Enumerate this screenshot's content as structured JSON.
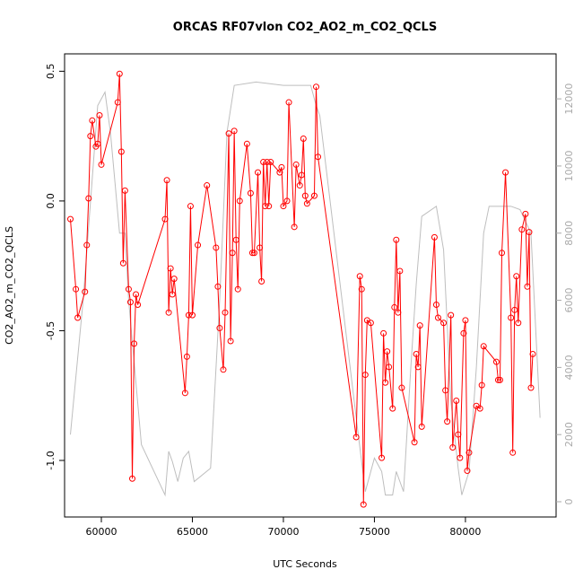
{
  "chart_data": {
    "type": "line",
    "title": "ORCAS RF07vlon CO2_AO2_m_CO2_QCLS",
    "xlabel": "UTC Seconds",
    "ylabel": "CO2_AO2_m_CO2_QCLS",
    "xlim": [
      57980,
      84980
    ],
    "xticks": [
      60000,
      65000,
      70000,
      75000,
      80000
    ],
    "ylim": [
      -1.218,
      0.567
    ],
    "yticks": [
      0.5,
      {
        "value": 0,
        "label": "0.0"
      },
      -0.5,
      {
        "value": -1,
        "label": "-1.0"
      }
    ],
    "y2lim": [
      -455,
      13340
    ],
    "y2ticks": [
      0,
      2000,
      4000,
      6000,
      8000,
      10000,
      12000
    ],
    "series": [
      {
        "color": "#bebebe",
        "axis": "y2",
        "x": [
          58300,
          59000,
          59800,
          60200,
          60500,
          61000,
          61300,
          61500,
          62200,
          63500,
          63700,
          63900,
          64200,
          64500,
          64800,
          65100,
          66000,
          66500,
          66900,
          67300,
          68500,
          70000,
          71500,
          71800,
          72000,
          73000,
          74000,
          74500,
          75000,
          75400,
          75600,
          76000,
          76200,
          76600,
          77000,
          77300,
          77600,
          78400,
          78800,
          79200,
          79600,
          79800,
          80200,
          80600,
          81000,
          81300,
          82500,
          83000,
          83600,
          84100
        ],
        "values": [
          2000,
          6000,
          11800,
          12200,
          11000,
          8000,
          8000,
          6000,
          1700,
          200,
          1500,
          1200,
          600,
          1300,
          1500,
          600,
          1000,
          6000,
          11000,
          12400,
          12500,
          12400,
          12400,
          11800,
          11500,
          7000,
          2500,
          300,
          1300,
          900,
          200,
          200,
          900,
          300,
          4000,
          6500,
          8500,
          8800,
          7500,
          3000,
          1000,
          200,
          900,
          4000,
          8000,
          8800,
          8800,
          8700,
          8000,
          2500
        ]
      },
      {
        "color": "#ff0000",
        "axis": "y",
        "x": [
          58300,
          58600,
          58700,
          59100,
          59200,
          59300,
          59400,
          59500,
          59700,
          59800,
          59900,
          60000,
          60900,
          61000,
          61100,
          61200,
          61300,
          61500,
          61600,
          61700,
          61800,
          61900,
          62000,
          63500,
          63600,
          63700,
          63800,
          63900,
          64000,
          64600,
          64700,
          64800,
          64900,
          65000,
          65300,
          65800,
          66300,
          66400,
          66500,
          66700,
          66800,
          67000,
          67100,
          67200,
          67300,
          67400,
          67500,
          67600,
          68000,
          68200,
          68300,
          68400,
          68600,
          68700,
          68800,
          68900,
          69000,
          69100,
          69200,
          69300,
          69800,
          69900,
          70000,
          70200,
          70300,
          70600,
          70700,
          70900,
          71000,
          71100,
          71200,
          71300,
          71700,
          71800,
          71900,
          74000,
          74200,
          74300,
          74400,
          74500,
          74600,
          74800,
          75400,
          75500,
          75600,
          75700,
          75800,
          76000,
          76100,
          76200,
          76300,
          76400,
          76500,
          77200,
          77300,
          77400,
          77500,
          77600,
          78300,
          78400,
          78500,
          78800,
          78900,
          79000,
          79200,
          79300,
          79500,
          79600,
          79700,
          79900,
          80000,
          80100,
          80200,
          80600,
          80800,
          80900,
          81000,
          81700,
          81800,
          81900,
          82000,
          82200,
          82500,
          82600,
          82700,
          82800,
          82900,
          83100,
          83300,
          83400,
          83500,
          83600,
          83700
        ],
        "values": [
          -0.07,
          -0.34,
          -0.45,
          -0.35,
          -0.17,
          0.01,
          0.25,
          0.31,
          0.21,
          0.22,
          0.33,
          0.14,
          0.38,
          0.49,
          0.19,
          -0.24,
          0.04,
          -0.34,
          -0.39,
          -1.07,
          -0.55,
          -0.36,
          -0.4,
          -0.07,
          0.08,
          -0.43,
          -0.26,
          -0.36,
          -0.3,
          -0.74,
          -0.6,
          -0.44,
          -0.02,
          -0.44,
          -0.17,
          0.06,
          -0.18,
          -0.33,
          -0.49,
          -0.65,
          -0.43,
          0.26,
          -0.54,
          -0.2,
          0.27,
          -0.15,
          -0.34,
          0.0,
          0.22,
          0.03,
          -0.2,
          -0.2,
          0.11,
          -0.18,
          -0.31,
          0.15,
          -0.02,
          0.15,
          -0.02,
          0.15,
          0.11,
          0.13,
          -0.02,
          0.0,
          0.38,
          -0.1,
          0.14,
          0.06,
          0.1,
          0.24,
          0.02,
          -0.01,
          0.02,
          0.44,
          0.17,
          -0.91,
          -0.29,
          -0.34,
          -1.17,
          -0.67,
          -0.46,
          -0.47,
          -0.99,
          -0.51,
          -0.7,
          -0.58,
          -0.64,
          -0.8,
          -0.41,
          -0.15,
          -0.43,
          -0.27,
          -0.72,
          -0.93,
          -0.59,
          -0.64,
          -0.48,
          -0.87,
          -0.14,
          -0.4,
          -0.45,
          -0.47,
          -0.73,
          -0.85,
          -0.44,
          -0.95,
          -0.77,
          -0.9,
          -0.99,
          -0.51,
          -0.46,
          -1.04,
          -0.97,
          -0.79,
          -0.8,
          -0.71,
          -0.56,
          -0.62,
          -0.69,
          -0.69,
          -0.2,
          0.11,
          -0.45,
          -0.97,
          -0.42,
          -0.29,
          -0.47,
          -0.11,
          -0.05,
          -0.33,
          -0.12,
          -0.72,
          -0.59
        ]
      }
    ]
  }
}
